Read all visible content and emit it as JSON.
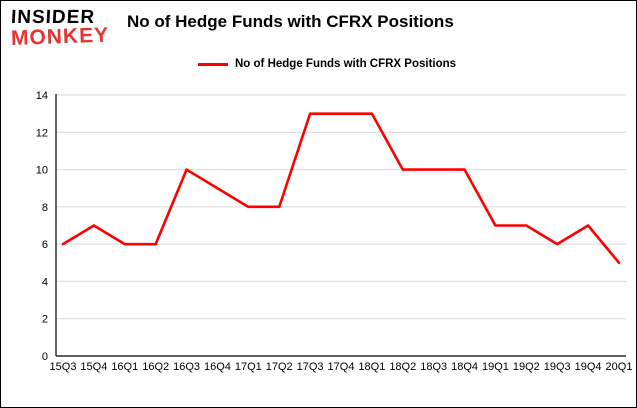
{
  "logo": {
    "line1": "INSIDER",
    "line2": "MONKEY"
  },
  "title": "No of Hedge Funds with CFRX Positions",
  "legend": {
    "label": "No of Hedge Funds with CFRX Positions",
    "color": "#ff0000"
  },
  "colors": {
    "line": "#ff0000",
    "grid": "#d9d9d9",
    "axis": "#000000",
    "background": "#ffffff",
    "logo_red": "#e43530"
  },
  "chart_data": {
    "type": "line",
    "title": "No of Hedge Funds with CFRX Positions",
    "categories": [
      "15Q3",
      "15Q4",
      "16Q1",
      "16Q2",
      "16Q3",
      "16Q4",
      "17Q1",
      "17Q2",
      "17Q3",
      "17Q4",
      "18Q1",
      "18Q2",
      "18Q3",
      "18Q4",
      "19Q1",
      "19Q2",
      "19Q3",
      "19Q4",
      "20Q1"
    ],
    "values": [
      6,
      7,
      6,
      6,
      10,
      9,
      8,
      8,
      13,
      13,
      13,
      10,
      10,
      10,
      7,
      7,
      6,
      7,
      5
    ],
    "xlabel": "",
    "ylabel": "",
    "ylim": [
      0,
      14
    ],
    "yticks": [
      0,
      2,
      4,
      6,
      8,
      10,
      12,
      14
    ],
    "grid": true,
    "legend_position": "top-left"
  }
}
